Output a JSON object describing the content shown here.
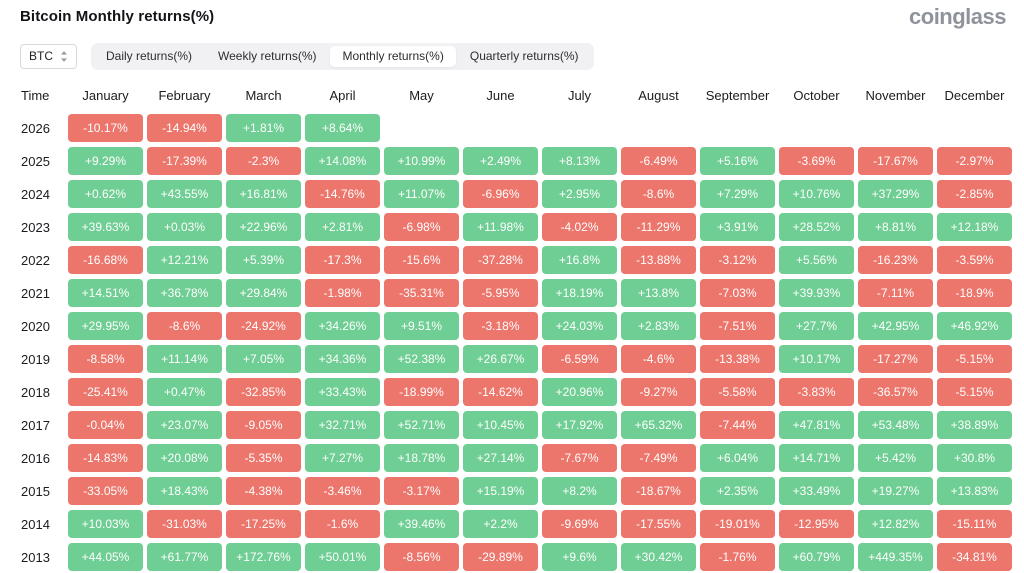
{
  "header": {
    "title": "Bitcoin Monthly returns(%)",
    "logo": "coinglass"
  },
  "controls": {
    "symbol_select": {
      "value": "BTC",
      "icon": "select-arrows-icon"
    },
    "tabs": [
      {
        "label": "Daily returns(%)",
        "active": false
      },
      {
        "label": "Weekly returns(%)",
        "active": false
      },
      {
        "label": "Monthly returns(%)",
        "active": true
      },
      {
        "label": "Quarterly returns(%)",
        "active": false
      }
    ]
  },
  "chart_data": {
    "type": "heatmap",
    "title": "Bitcoin Monthly returns(%)",
    "columns": [
      "Time",
      "January",
      "February",
      "March",
      "April",
      "May",
      "June",
      "July",
      "August",
      "September",
      "October",
      "November",
      "December"
    ],
    "color_rule": "positive values green, negative values red, empty cells blank",
    "colors": {
      "positive": "#6fce93",
      "negative": "#ec756c"
    },
    "rows": [
      {
        "year": "2026",
        "values": [
          "-10.17%",
          "-14.94%",
          "+1.81%",
          "+8.64%",
          "",
          "",
          "",
          "",
          "",
          "",
          "",
          ""
        ]
      },
      {
        "year": "2025",
        "values": [
          "+9.29%",
          "-17.39%",
          "-2.3%",
          "+14.08%",
          "+10.99%",
          "+2.49%",
          "+8.13%",
          "-6.49%",
          "+5.16%",
          "-3.69%",
          "-17.67%",
          "-2.97%"
        ]
      },
      {
        "year": "2024",
        "values": [
          "+0.62%",
          "+43.55%",
          "+16.81%",
          "-14.76%",
          "+11.07%",
          "-6.96%",
          "+2.95%",
          "-8.6%",
          "+7.29%",
          "+10.76%",
          "+37.29%",
          "-2.85%"
        ]
      },
      {
        "year": "2023",
        "values": [
          "+39.63%",
          "+0.03%",
          "+22.96%",
          "+2.81%",
          "-6.98%",
          "+11.98%",
          "-4.02%",
          "-11.29%",
          "+3.91%",
          "+28.52%",
          "+8.81%",
          "+12.18%"
        ]
      },
      {
        "year": "2022",
        "values": [
          "-16.68%",
          "+12.21%",
          "+5.39%",
          "-17.3%",
          "-15.6%",
          "-37.28%",
          "+16.8%",
          "-13.88%",
          "-3.12%",
          "+5.56%",
          "-16.23%",
          "-3.59%"
        ]
      },
      {
        "year": "2021",
        "values": [
          "+14.51%",
          "+36.78%",
          "+29.84%",
          "-1.98%",
          "-35.31%",
          "-5.95%",
          "+18.19%",
          "+13.8%",
          "-7.03%",
          "+39.93%",
          "-7.11%",
          "-18.9%"
        ]
      },
      {
        "year": "2020",
        "values": [
          "+29.95%",
          "-8.6%",
          "-24.92%",
          "+34.26%",
          "+9.51%",
          "-3.18%",
          "+24.03%",
          "+2.83%",
          "-7.51%",
          "+27.7%",
          "+42.95%",
          "+46.92%"
        ]
      },
      {
        "year": "2019",
        "values": [
          "-8.58%",
          "+11.14%",
          "+7.05%",
          "+34.36%",
          "+52.38%",
          "+26.67%",
          "-6.59%",
          "-4.6%",
          "-13.38%",
          "+10.17%",
          "-17.27%",
          "-5.15%"
        ]
      },
      {
        "year": "2018",
        "values": [
          "-25.41%",
          "+0.47%",
          "-32.85%",
          "+33.43%",
          "-18.99%",
          "-14.62%",
          "+20.96%",
          "-9.27%",
          "-5.58%",
          "-3.83%",
          "-36.57%",
          "-5.15%"
        ]
      },
      {
        "year": "2017",
        "values": [
          "-0.04%",
          "+23.07%",
          "-9.05%",
          "+32.71%",
          "+52.71%",
          "+10.45%",
          "+17.92%",
          "+65.32%",
          "-7.44%",
          "+47.81%",
          "+53.48%",
          "+38.89%"
        ]
      },
      {
        "year": "2016",
        "values": [
          "-14.83%",
          "+20.08%",
          "-5.35%",
          "+7.27%",
          "+18.78%",
          "+27.14%",
          "-7.67%",
          "-7.49%",
          "+6.04%",
          "+14.71%",
          "+5.42%",
          "+30.8%"
        ]
      },
      {
        "year": "2015",
        "values": [
          "-33.05%",
          "+18.43%",
          "-4.38%",
          "-3.46%",
          "-3.17%",
          "+15.19%",
          "+8.2%",
          "-18.67%",
          "+2.35%",
          "+33.49%",
          "+19.27%",
          "+13.83%"
        ]
      },
      {
        "year": "2014",
        "values": [
          "+10.03%",
          "-31.03%",
          "-17.25%",
          "-1.6%",
          "+39.46%",
          "+2.2%",
          "-9.69%",
          "-17.55%",
          "-19.01%",
          "-12.95%",
          "+12.82%",
          "-15.11%"
        ]
      },
      {
        "year": "2013",
        "values": [
          "+44.05%",
          "+61.77%",
          "+172.76%",
          "+50.01%",
          "-8.56%",
          "-29.89%",
          "+9.6%",
          "+30.42%",
          "-1.76%",
          "+60.79%",
          "+449.35%",
          "-34.81%"
        ]
      }
    ]
  }
}
